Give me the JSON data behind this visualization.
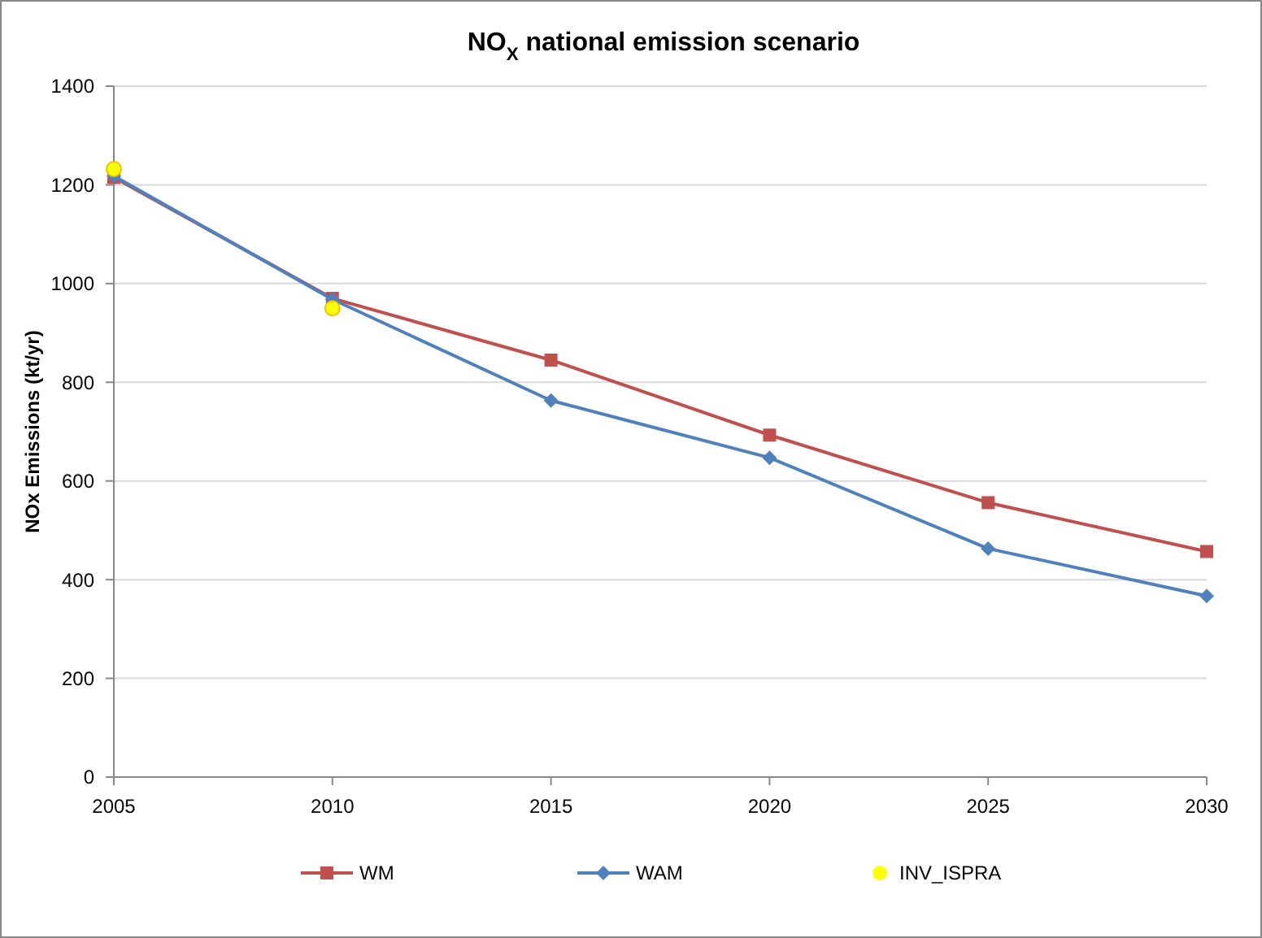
{
  "chart_data": {
    "type": "line",
    "title": "NO$_{X}$ national emission scenario",
    "ylabel": "NOx Emissions (kt/yr)",
    "x": [
      2005,
      2010,
      2015,
      2020,
      2025,
      2030
    ],
    "xlim": [
      2005,
      2030
    ],
    "xticks": [
      2005,
      2010,
      2015,
      2020,
      2025,
      2030
    ],
    "ylim": [
      0,
      1400
    ],
    "yticks": [
      0,
      200,
      400,
      600,
      800,
      1000,
      1200,
      1400
    ],
    "grid": "y",
    "legend": "bottom",
    "series": [
      {
        "name": "WM",
        "color": "#c0504d",
        "marker": "square",
        "values": [
          1215,
          970,
          845,
          693,
          556,
          457
        ]
      },
      {
        "name": "WAM",
        "color": "#4f81bd",
        "marker": "diamond",
        "values": [
          1218,
          968,
          763,
          647,
          463,
          367
        ]
      },
      {
        "name": "INV_ISPRA",
        "type": "scatter",
        "color": "#ffff00",
        "marker": "circle",
        "x": [
          2005,
          2010
        ],
        "values": [
          1232,
          950
        ]
      }
    ]
  }
}
